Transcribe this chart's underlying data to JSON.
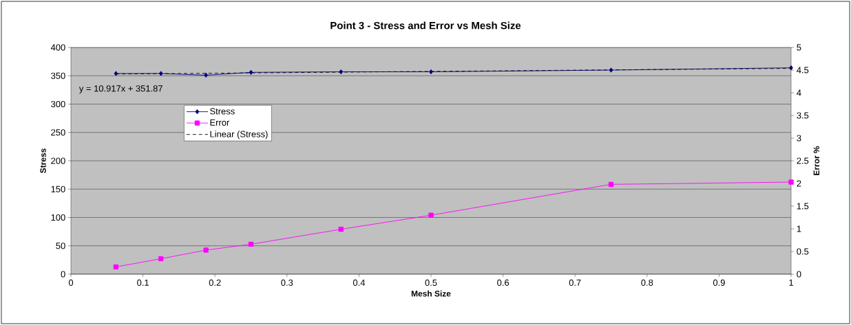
{
  "chart_data": {
    "type": "line",
    "title": "Point 3  - Stress and Error vs Mesh Size",
    "xlabel": "Mesh Size",
    "ylabel": "Stress",
    "y2label": "Error %",
    "x": [
      0.0625,
      0.125,
      0.1875,
      0.25,
      0.375,
      0.5,
      0.75,
      1
    ],
    "series": [
      {
        "name": "Stress",
        "color": "#000080",
        "marker": "diamond",
        "values": [
          354,
          354,
          351,
          356,
          357,
          357,
          360,
          364
        ]
      },
      {
        "name": "Error",
        "color": "#ff00ff",
        "marker": "square",
        "axis": "y2",
        "values": [
          0.16,
          0.34,
          0.53,
          0.66,
          0.99,
          1.3,
          1.98,
          2.03
        ]
      },
      {
        "name": "Linear (Stress)",
        "color": "#000000",
        "marker": "none",
        "line_style": "dashed",
        "x": [
          0.0625,
          1
        ],
        "values": [
          353,
          363
        ]
      }
    ],
    "annotations": [
      "y = 10.917x + 351.87"
    ],
    "xlim": [
      0,
      1
    ],
    "xticks": [
      0,
      0.1,
      0.2,
      0.3,
      0.4,
      0.5,
      0.6,
      0.7,
      0.8,
      0.9,
      1
    ],
    "ylim": [
      0,
      400
    ],
    "yticks": [
      0,
      50,
      100,
      150,
      200,
      250,
      300,
      350,
      400
    ],
    "y2lim": [
      0,
      5
    ],
    "y2ticks": [
      0,
      0.5,
      1,
      1.5,
      2,
      2.5,
      3,
      3.5,
      4,
      4.5,
      5
    ],
    "grid": "y",
    "legend": "top left"
  }
}
